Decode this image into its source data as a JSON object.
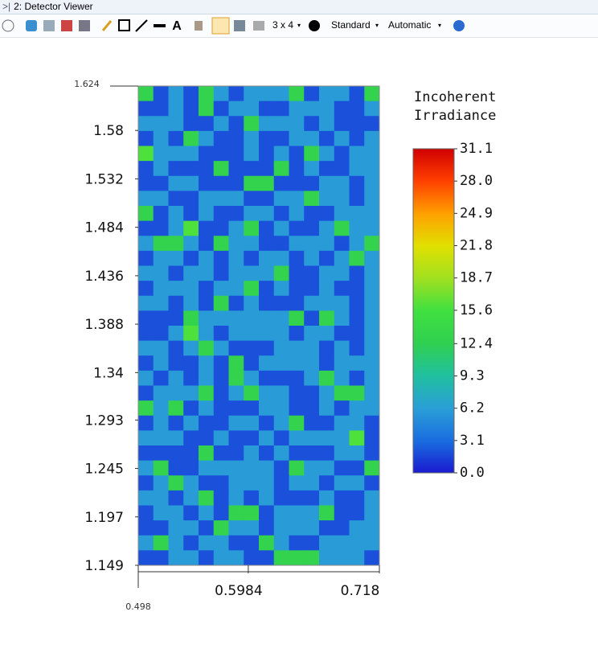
{
  "window": {
    "title": "2: Detector Viewer",
    "layout": "3 x 4",
    "mode": "Standard",
    "scale": "Automatic"
  },
  "chart_data": {
    "type": "heatmap",
    "xlim": [
      0.498,
      0.718
    ],
    "xticks": [
      0.498,
      0.5984,
      0.718
    ],
    "ylim": [
      1.149,
      1.624
    ],
    "yticks": [
      1.624,
      1.58,
      1.532,
      1.484,
      1.436,
      1.388,
      1.34,
      1.293,
      1.245,
      1.197,
      1.149
    ],
    "colorbar": {
      "title": [
        "Incoherent",
        "Irradiance"
      ],
      "zlim": [
        0,
        31.1
      ],
      "ticks": [
        {
          "value": 0,
          "label": "0.0"
        },
        3.1,
        6.2,
        9.3,
        12.4,
        15.6,
        18.7,
        21.8,
        24.9,
        {
          "value": 28,
          "label": "28.0"
        },
        31.1
      ],
      "colors": [
        "#1a1ad0",
        "#1a6ee0",
        "#2a9fd6",
        "#20c0a0",
        "#30d050",
        "#40e040",
        "#a0e020",
        "#e0e000",
        "#ffa000",
        "#ff4000",
        "#d00000"
      ]
    },
    "z": [
      [
        13,
        2,
        6,
        2,
        13,
        6,
        2,
        6,
        6,
        6,
        13,
        2,
        6,
        6,
        2,
        13
      ],
      [
        2,
        2,
        6,
        2,
        13,
        2,
        6,
        6,
        2,
        2,
        6,
        6,
        6,
        2,
        2,
        6
      ],
      [
        6,
        6,
        6,
        2,
        2,
        6,
        2,
        13,
        6,
        6,
        6,
        2,
        6,
        2,
        2,
        2
      ],
      [
        2,
        6,
        2,
        13,
        6,
        2,
        2,
        6,
        2,
        2,
        6,
        6,
        2,
        6,
        2,
        6
      ],
      [
        16,
        6,
        6,
        6,
        2,
        2,
        2,
        6,
        2,
        6,
        2,
        13,
        6,
        2,
        6,
        6
      ],
      [
        2,
        6,
        2,
        2,
        2,
        13,
        2,
        2,
        2,
        13,
        2,
        6,
        2,
        2,
        6,
        6
      ],
      [
        2,
        2,
        6,
        6,
        2,
        2,
        2,
        13,
        13,
        2,
        2,
        2,
        6,
        6,
        2,
        6
      ],
      [
        6,
        6,
        2,
        2,
        6,
        6,
        6,
        2,
        2,
        6,
        6,
        13,
        6,
        6,
        2,
        6
      ],
      [
        13,
        2,
        6,
        2,
        6,
        2,
        2,
        6,
        6,
        2,
        6,
        2,
        2,
        6,
        6,
        6
      ],
      [
        2,
        2,
        6,
        16,
        2,
        2,
        6,
        13,
        2,
        6,
        2,
        2,
        6,
        13,
        6,
        6
      ],
      [
        6,
        13,
        13,
        6,
        2,
        13,
        6,
        6,
        2,
        2,
        6,
        6,
        6,
        2,
        6,
        13
      ],
      [
        2,
        6,
        6,
        2,
        6,
        2,
        6,
        2,
        6,
        6,
        2,
        6,
        2,
        6,
        13,
        6
      ],
      [
        6,
        6,
        2,
        6,
        6,
        2,
        6,
        6,
        6,
        13,
        2,
        2,
        6,
        6,
        2,
        6
      ],
      [
        2,
        6,
        6,
        6,
        2,
        6,
        6,
        13,
        2,
        6,
        2,
        2,
        6,
        2,
        2,
        6
      ],
      [
        6,
        6,
        2,
        6,
        2,
        13,
        2,
        6,
        2,
        2,
        2,
        6,
        6,
        6,
        2,
        6
      ],
      [
        2,
        2,
        2,
        13,
        6,
        6,
        6,
        6,
        6,
        6,
        13,
        2,
        13,
        6,
        2,
        6
      ],
      [
        2,
        2,
        6,
        16,
        6,
        2,
        6,
        6,
        6,
        6,
        2,
        6,
        6,
        2,
        2,
        6
      ],
      [
        6,
        6,
        2,
        6,
        13,
        6,
        2,
        2,
        2,
        6,
        6,
        6,
        2,
        6,
        2,
        6
      ],
      [
        2,
        6,
        2,
        2,
        6,
        2,
        13,
        2,
        6,
        6,
        6,
        6,
        2,
        6,
        6,
        6
      ],
      [
        6,
        2,
        6,
        2,
        6,
        2,
        13,
        6,
        2,
        2,
        2,
        6,
        13,
        6,
        2,
        6
      ],
      [
        2,
        6,
        6,
        6,
        13,
        2,
        6,
        13,
        6,
        6,
        2,
        2,
        6,
        13,
        13,
        6
      ],
      [
        13,
        6,
        13,
        2,
        6,
        2,
        2,
        2,
        6,
        6,
        2,
        2,
        6,
        2,
        6,
        6
      ],
      [
        2,
        6,
        2,
        6,
        2,
        2,
        6,
        6,
        2,
        6,
        13,
        2,
        2,
        6,
        6,
        2
      ],
      [
        6,
        6,
        6,
        2,
        2,
        6,
        2,
        2,
        6,
        2,
        6,
        6,
        6,
        6,
        16,
        2
      ],
      [
        2,
        2,
        2,
        2,
        13,
        2,
        2,
        6,
        2,
        6,
        2,
        2,
        2,
        6,
        6,
        2
      ],
      [
        6,
        13,
        2,
        2,
        6,
        6,
        6,
        6,
        6,
        2,
        13,
        6,
        6,
        2,
        2,
        13
      ],
      [
        2,
        6,
        13,
        6,
        2,
        2,
        6,
        6,
        6,
        2,
        6,
        6,
        2,
        6,
        6,
        2
      ],
      [
        6,
        6,
        2,
        6,
        13,
        2,
        6,
        2,
        6,
        2,
        2,
        2,
        6,
        2,
        2,
        6
      ],
      [
        2,
        6,
        6,
        2,
        6,
        2,
        13,
        13,
        2,
        6,
        6,
        6,
        13,
        2,
        2,
        6
      ],
      [
        2,
        2,
        6,
        6,
        2,
        13,
        6,
        6,
        2,
        6,
        6,
        6,
        2,
        2,
        6,
        6
      ],
      [
        6,
        13,
        6,
        2,
        6,
        6,
        2,
        2,
        13,
        6,
        2,
        2,
        6,
        6,
        6,
        6
      ],
      [
        2,
        2,
        6,
        6,
        2,
        6,
        6,
        2,
        2,
        13,
        13,
        13,
        6,
        6,
        6,
        2
      ]
    ]
  }
}
